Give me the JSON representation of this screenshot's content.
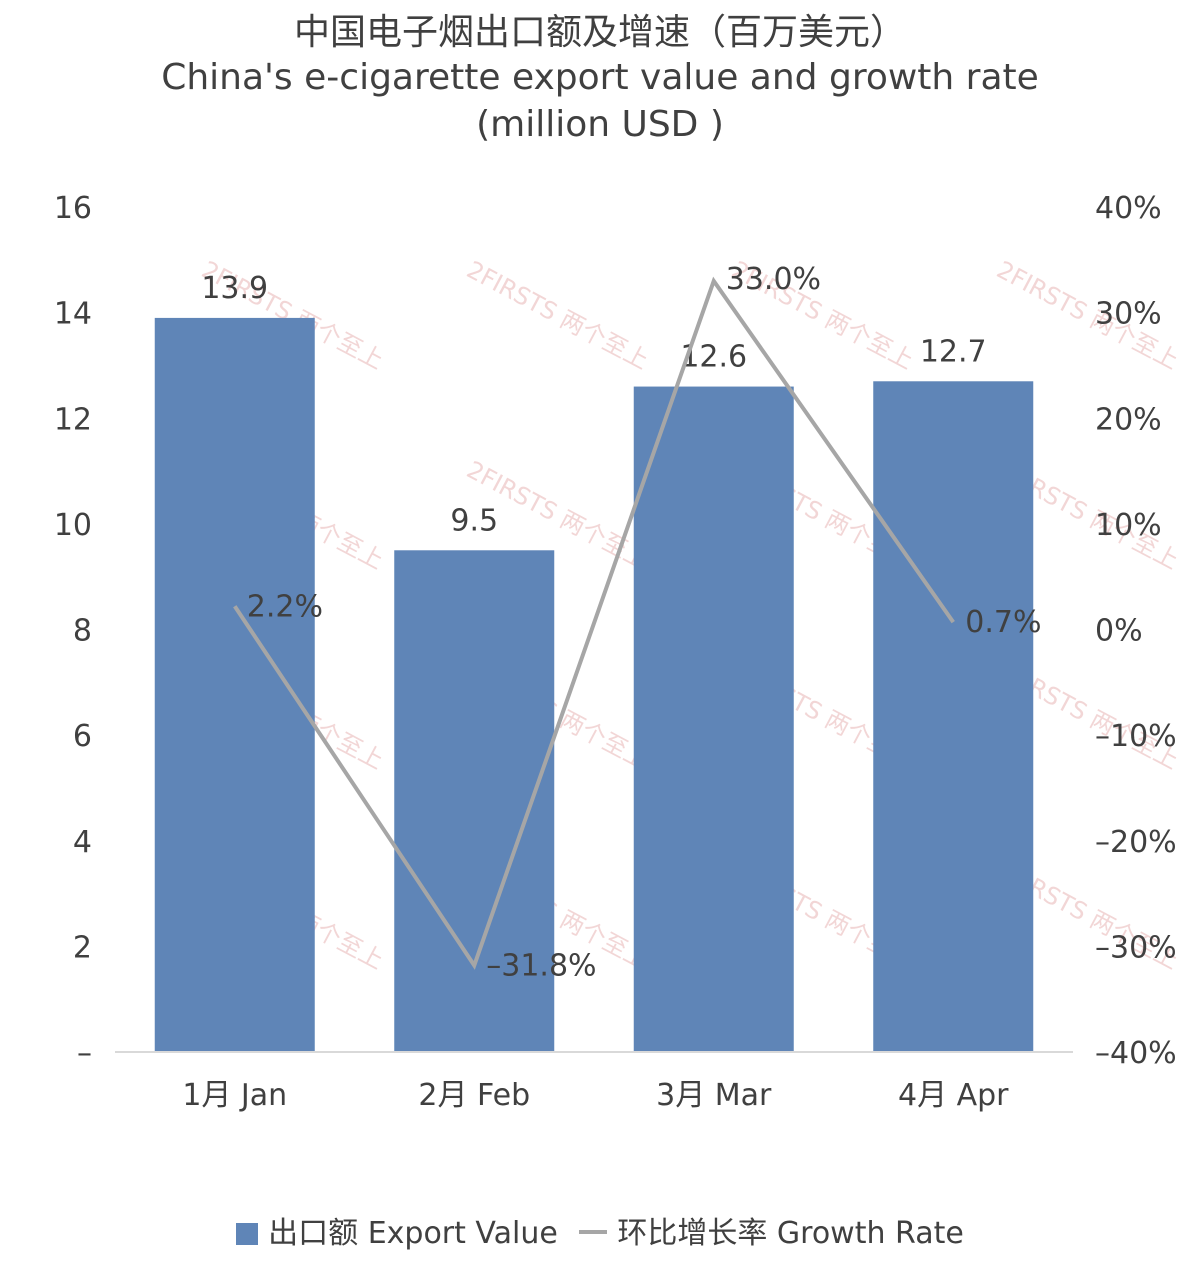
{
  "title": "中国电子烟出口额及增速（百万美元）",
  "subtitle_en": "China's e-cigarette export value and growth rate",
  "subtitle_unit": "(million USD )",
  "watermark": "2FIRSTS 两个至上",
  "colors": {
    "bar": "#5f85b7",
    "line": "#a6a6a6",
    "text": "#404040",
    "axis": "#d9d9d9",
    "watermark": "#e8b5b5"
  },
  "legend": {
    "bar_label": "出口额 Export Value",
    "line_label": "环比增长率 Growth Rate"
  },
  "chart_data": {
    "type": "bar",
    "categories": [
      "1月 Jan",
      "2月 Feb",
      "3月 Mar",
      "4月 Apr"
    ],
    "series": [
      {
        "name": "出口额 Export Value",
        "type": "bar",
        "axis": "left",
        "values": [
          13.9,
          9.5,
          12.6,
          12.7
        ],
        "labels": [
          "13.9",
          "9.5",
          "12.6",
          "12.7"
        ]
      },
      {
        "name": "环比增长率 Growth Rate",
        "type": "line",
        "axis": "right",
        "values": [
          2.2,
          -31.8,
          33.0,
          0.7
        ],
        "labels": [
          "2.2%",
          "-31.8%",
          "33.0%",
          "0.7%"
        ]
      }
    ],
    "y_left": {
      "range": [
        0,
        16
      ],
      "ticks": [
        "–",
        "2",
        "4",
        "6",
        "8",
        "10",
        "12",
        "14",
        "16"
      ]
    },
    "y_right": {
      "range": [
        -40,
        40
      ],
      "ticks": [
        "-40%",
        "-30%",
        "-20%",
        "-10%",
        "0%",
        "10%",
        "20%",
        "30%",
        "40%"
      ]
    },
    "legend_position": "bottom",
    "grid": false
  }
}
